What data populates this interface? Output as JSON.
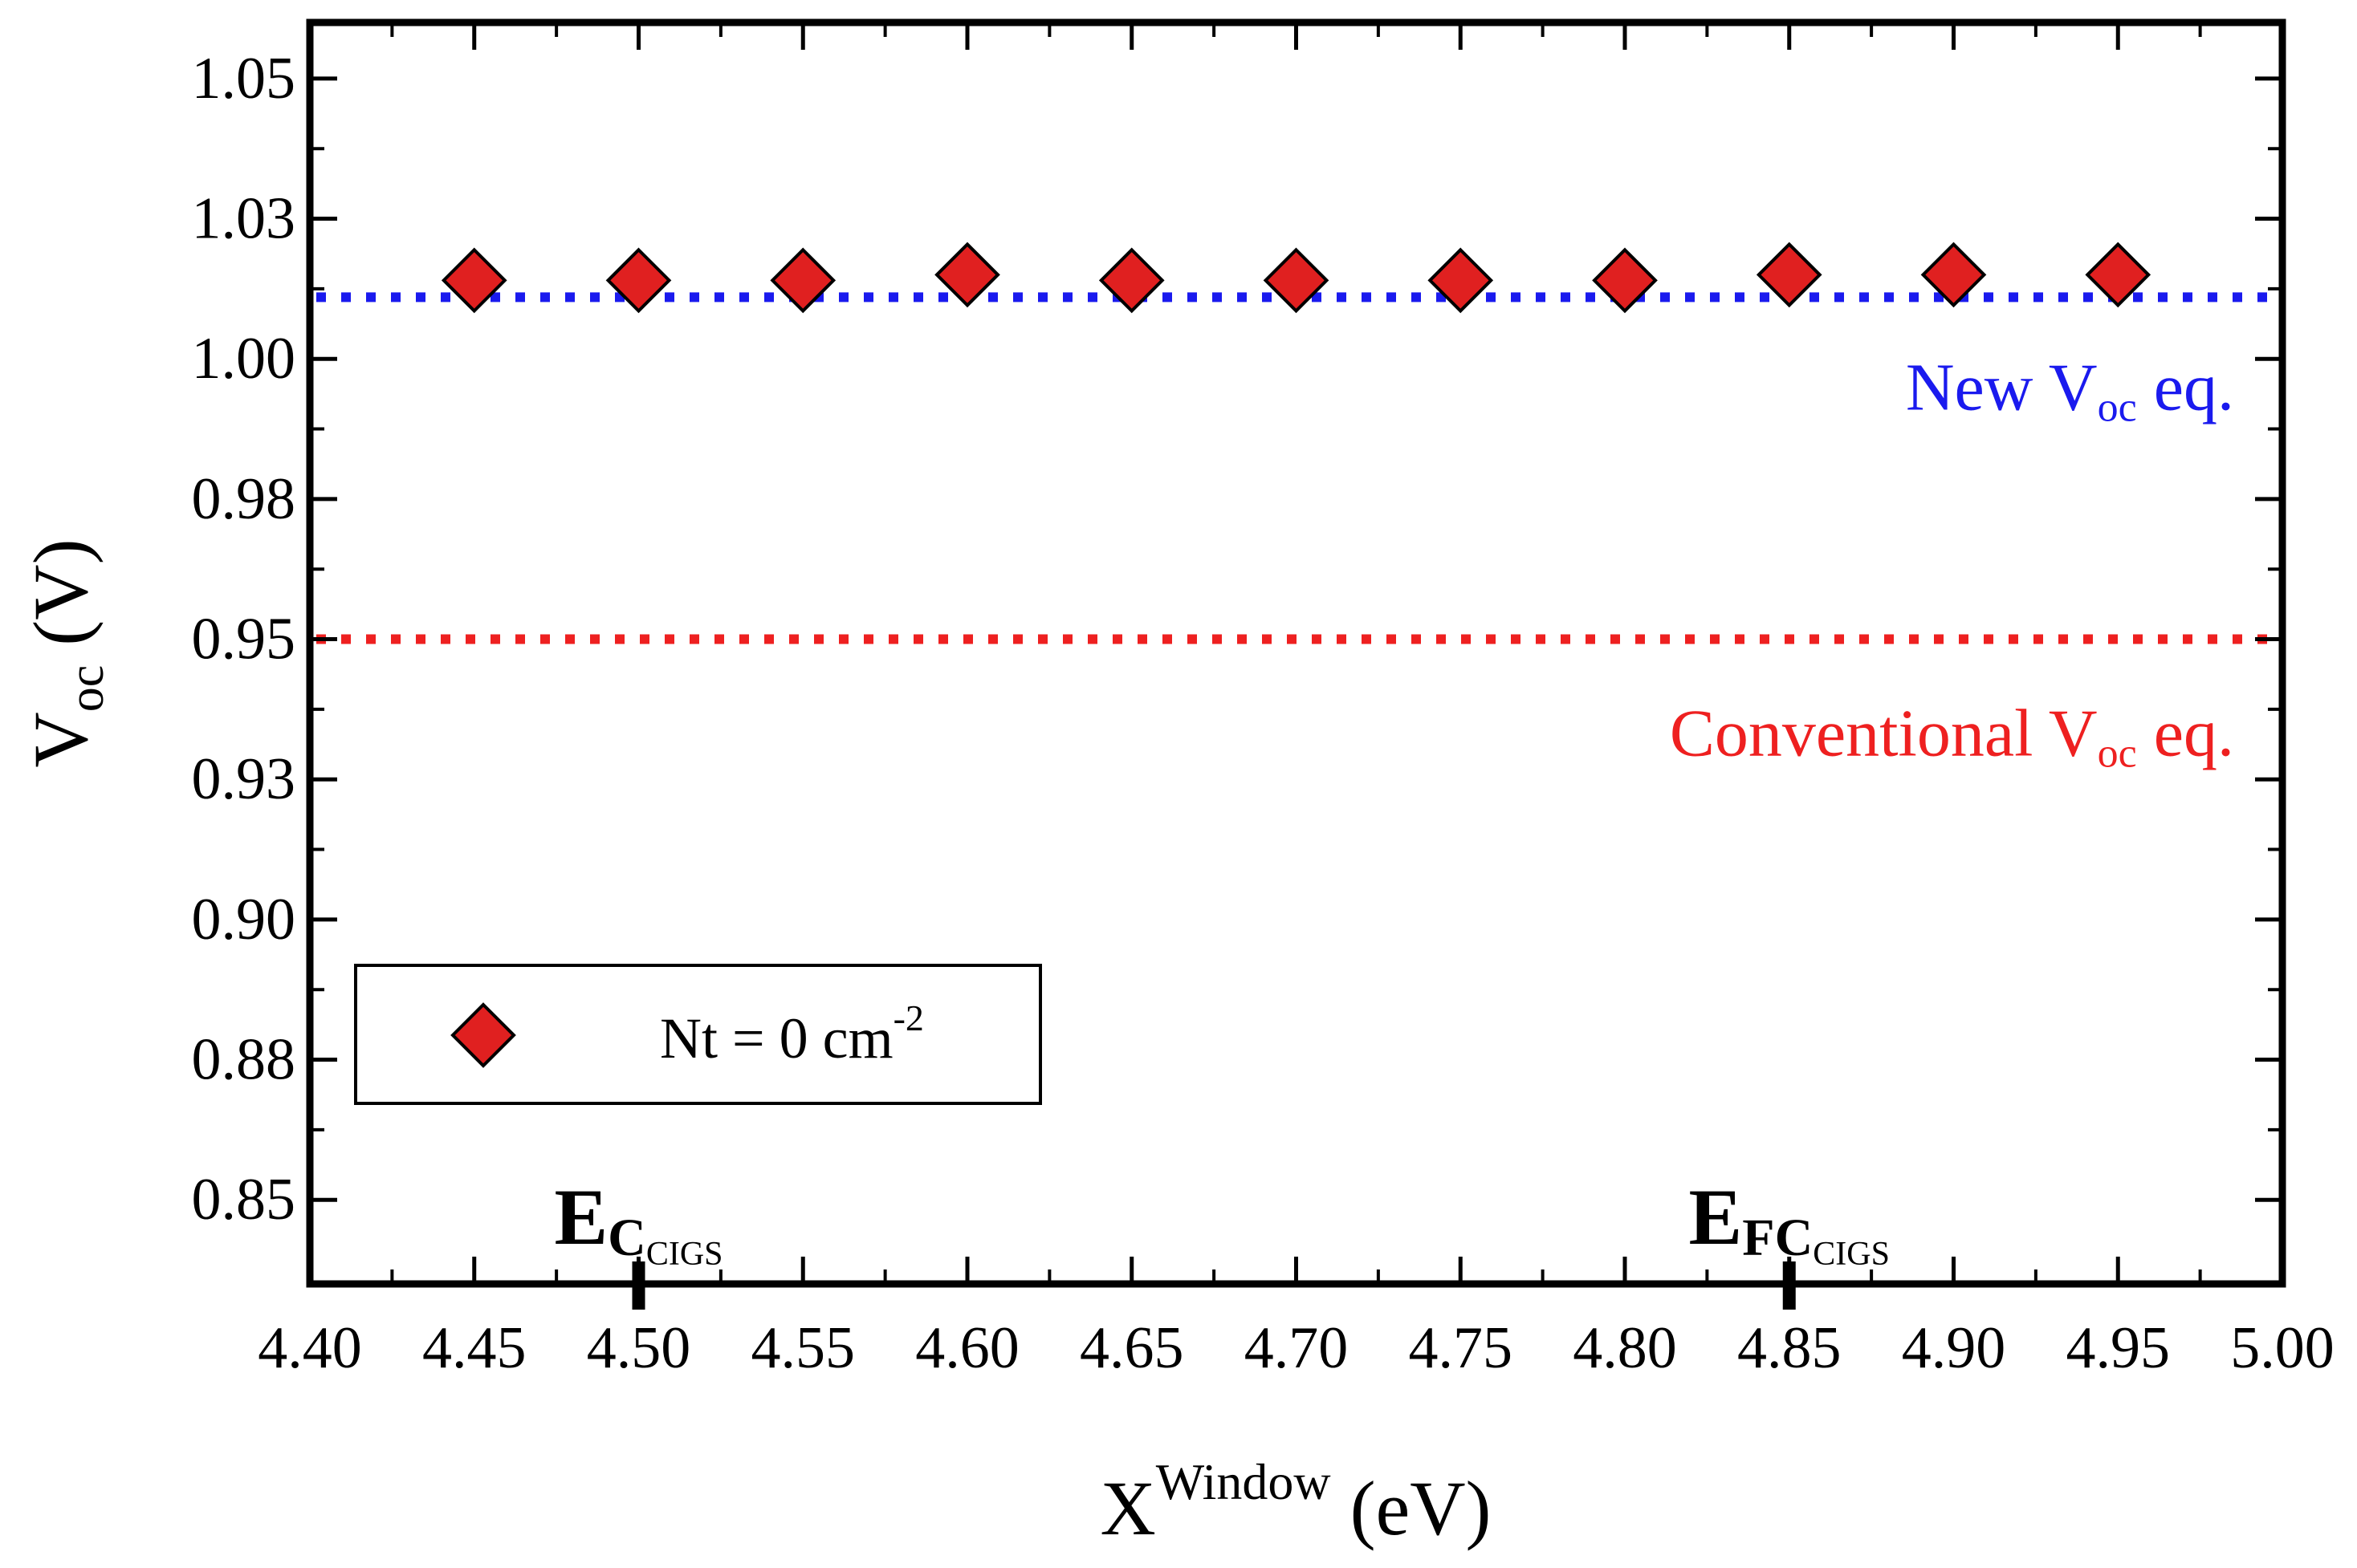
{
  "chart_data": {
    "type": "scatter",
    "title": "",
    "xlabel": {
      "main": "X",
      "sup": "Window",
      "unit": " (eV)"
    },
    "ylabel": {
      "main": "V",
      "sub": "oc",
      "unit": " (V)"
    },
    "xlim": [
      4.4,
      5.0
    ],
    "ylim": [
      0.835,
      1.06
    ],
    "x_ticks": [
      4.4,
      4.45,
      4.5,
      4.55,
      4.6,
      4.65,
      4.7,
      4.75,
      4.8,
      4.85,
      4.9,
      4.95,
      5.0
    ],
    "x_tick_labels": [
      "4.40",
      "4.45",
      "4.50",
      "4.55",
      "4.60",
      "4.65",
      "4.70",
      "4.75",
      "4.80",
      "4.85",
      "4.90",
      "4.95",
      "5.00"
    ],
    "y_ticks": [
      0.85,
      0.875,
      0.9,
      0.925,
      0.95,
      0.975,
      1.0,
      1.025,
      1.05
    ],
    "y_tick_labels": [
      "0.85",
      "0.88",
      "0.90",
      "0.93",
      "0.95",
      "0.98",
      "1.00",
      "1.03",
      "1.05"
    ],
    "series": [
      {
        "name": "Nt = 0 cm-2",
        "marker": "diamond",
        "color": "#e02020",
        "x": [
          4.45,
          4.5,
          4.55,
          4.6,
          4.65,
          4.7,
          4.75,
          4.8,
          4.85,
          4.9,
          4.95
        ],
        "y": [
          1.014,
          1.014,
          1.014,
          1.015,
          1.014,
          1.014,
          1.014,
          1.014,
          1.015,
          1.015,
          1.015
        ]
      }
    ],
    "legend": {
      "position": "lower-left",
      "text_main": "Nt = 0 cm",
      "text_sup": "-2"
    },
    "reference_lines": [
      {
        "name": "new-voc-line",
        "y": 1.011,
        "color": "#1a1aee",
        "style": "dotted",
        "label_main": "New V",
        "label_sub": "oc",
        "label_tail": " eq."
      },
      {
        "name": "conventional-voc-line",
        "y": 0.95,
        "color": "#ee2020",
        "style": "dotted",
        "label_main": "Conventional V",
        "label_sub": "oc",
        "label_tail": " eq."
      }
    ],
    "x_markers": [
      {
        "name": "ec-cigs",
        "x": 4.5,
        "main": "E",
        "sub": "C",
        "subsub": "CIGS"
      },
      {
        "name": "efc-cigs",
        "x": 4.85,
        "main": "E",
        "sub": "FC",
        "subsub": "CIGS"
      }
    ]
  }
}
